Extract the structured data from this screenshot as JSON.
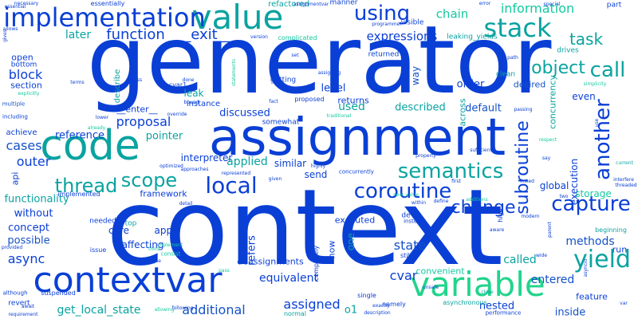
{
  "palette": {
    "blue": "#0a3fd6",
    "royal": "#1452c8",
    "indigo": "#2f2fe0",
    "teal": "#0aa3a0",
    "cyan": "#0fb7b8",
    "sea": "#14c9a0",
    "mint": "#22d48c"
  },
  "words": [
    {
      "text": "generator"
    },
    {
      "text": "context"
    },
    {
      "text": "assignment"
    },
    {
      "text": "contextvar"
    },
    {
      "text": "variable"
    },
    {
      "text": "value"
    },
    {
      "text": "code"
    },
    {
      "text": "implementation"
    },
    {
      "text": "stack"
    },
    {
      "text": "using"
    },
    {
      "text": "semantics"
    },
    {
      "text": "coroutine"
    },
    {
      "text": "local"
    },
    {
      "text": "scope"
    },
    {
      "text": "thread"
    },
    {
      "text": "subroutine"
    },
    {
      "text": "capture"
    },
    {
      "text": "yield"
    },
    {
      "text": "call"
    },
    {
      "text": "another"
    },
    {
      "text": "change"
    },
    {
      "text": "object"
    },
    {
      "text": "function"
    },
    {
      "text": "__exit__"
    },
    {
      "text": "information"
    },
    {
      "text": "task"
    },
    {
      "text": "chain"
    },
    {
      "text": "expressions"
    },
    {
      "text": "later"
    },
    {
      "text": "block"
    },
    {
      "text": "cases"
    },
    {
      "text": "outer"
    },
    {
      "text": "async"
    },
    {
      "text": "cvar"
    },
    {
      "text": "state"
    },
    {
      "text": "assigned"
    },
    {
      "text": "additional"
    },
    {
      "text": "get_local_state"
    },
    {
      "text": "equivalent"
    },
    {
      "text": "methods"
    },
    {
      "text": "called"
    },
    {
      "text": "entered"
    },
    {
      "text": "nested"
    },
    {
      "text": "inside"
    },
    {
      "text": "feature"
    },
    {
      "text": "storage"
    },
    {
      "text": "execution"
    },
    {
      "text": "level"
    },
    {
      "text": "returns"
    },
    {
      "text": "used"
    },
    {
      "text": "proposal"
    },
    {
      "text": "pointer"
    },
    {
      "text": "reference"
    },
    {
      "text": "applied"
    },
    {
      "text": "interpreter"
    },
    {
      "text": "way"
    },
    {
      "text": "order"
    },
    {
      "text": "across"
    },
    {
      "text": "desired"
    },
    {
      "text": "even"
    },
    {
      "text": "default"
    },
    {
      "text": "discussed"
    },
    {
      "text": "described"
    },
    {
      "text": "concurrency"
    },
    {
      "text": "concept"
    },
    {
      "text": "possible"
    },
    {
      "text": "without"
    },
    {
      "text": "functionality"
    },
    {
      "text": "framework"
    },
    {
      "text": "core"
    },
    {
      "text": "affecting"
    },
    {
      "text": "apply"
    },
    {
      "text": "refers"
    },
    {
      "text": "deassignments"
    },
    {
      "text": "one"
    },
    {
      "text": "now"
    },
    {
      "text": "executed"
    },
    {
      "text": "convenient"
    },
    {
      "text": "o1"
    },
    {
      "text": "global"
    },
    {
      "text": "send"
    },
    {
      "text": "similar"
    },
    {
      "text": "leak"
    },
    {
      "text": "section"
    },
    {
      "text": "open"
    },
    {
      "text": "api"
    },
    {
      "text": "instance"
    },
    {
      "text": "refactored"
    },
    {
      "text": "essentially"
    },
    {
      "text": "leaking_yields"
    },
    {
      "text": "__enter__"
    },
    {
      "text": "describe"
    },
    {
      "text": "returned"
    },
    {
      "text": "drives"
    },
    {
      "text": "part"
    },
    {
      "text": "clean"
    },
    {
      "text": "visible"
    },
    {
      "text": "manner"
    },
    {
      "text": "beginning"
    },
    {
      "text": "run"
    },
    {
      "text": "multiple"
    },
    {
      "text": "achieve"
    },
    {
      "text": "implemented"
    },
    {
      "text": "needed"
    },
    {
      "text": "top"
    },
    {
      "text": "getting"
    },
    {
      "text": "somewhat"
    },
    {
      "text": "bottom"
    },
    {
      "text": "complicated"
    },
    {
      "text": "proposed"
    },
    {
      "text": "including"
    },
    {
      "text": "cvar1"
    },
    {
      "text": "completely"
    },
    {
      "text": "still"
    },
    {
      "text": "single"
    },
    {
      "text": "namely"
    },
    {
      "text": "normal"
    },
    {
      "text": "asynchronous"
    },
    {
      "text": "performance"
    },
    {
      "text": "concurrently"
    },
    {
      "text": "suspended"
    },
    {
      "text": "revert"
    },
    {
      "text": "although"
    },
    {
      "text": "issue"
    },
    {
      "text": "consist"
    },
    {
      "text": "instead"
    },
    {
      "text": "new_value"
    },
    {
      "text": "provided"
    },
    {
      "text": "essential"
    },
    {
      "text": "explicitly"
    },
    {
      "text": "allows"
    },
    {
      "text": "necessary"
    },
    {
      "text": "override"
    },
    {
      "text": "following"
    },
    {
      "text": "requirement"
    },
    {
      "text": "await"
    },
    {
      "text": "allowing"
    },
    {
      "text": "description"
    },
    {
      "text": "exactly"
    },
    {
      "text": "unsafe"
    },
    {
      "text": "close"
    },
    {
      "text": "pass"
    },
    {
      "text": "example"
    },
    {
      "text": "third"
    },
    {
      "text": "wide"
    },
    {
      "text": "highly"
    },
    {
      "text": "sufficient"
    },
    {
      "text": "respect"
    },
    {
      "text": "special"
    },
    {
      "text": "error"
    },
    {
      "text": "assignmentvar"
    },
    {
      "text": "programmer"
    },
    {
      "text": "version"
    },
    {
      "text": "simplicity"
    },
    {
      "text": "current"
    },
    {
      "text": "path"
    },
    {
      "text": "passing"
    },
    {
      "text": "threaded"
    },
    {
      "text": "modern"
    },
    {
      "text": "interfere"
    },
    {
      "text": "aware"
    },
    {
      "text": "two"
    },
    {
      "text": "define"
    },
    {
      "text": "additions"
    },
    {
      "text": "within"
    },
    {
      "text": "linked"
    },
    {
      "text": "first"
    },
    {
      "text": "property"
    },
    {
      "text": "traditional"
    },
    {
      "text": "fact"
    },
    {
      "text": "bound"
    },
    {
      "text": "done"
    },
    {
      "text": "access"
    },
    {
      "text": "terms"
    },
    {
      "text": "lower"
    },
    {
      "text": "already"
    },
    {
      "text": "represented"
    },
    {
      "text": "approaches"
    },
    {
      "text": "optimized"
    },
    {
      "text": "given"
    },
    {
      "text": "detail"
    },
    {
      "text": "implement"
    },
    {
      "text": "assigning"
    },
    {
      "text": "statements"
    },
    {
      "text": "gives"
    },
    {
      "text": "de"
    },
    {
      "text": "say"
    },
    {
      "text": "use"
    },
    {
      "text": "high"
    },
    {
      "text": "asyncio"
    },
    {
      "text": "parent"
    },
    {
      "text": "var"
    },
    {
      "text": "set"
    }
  ]
}
